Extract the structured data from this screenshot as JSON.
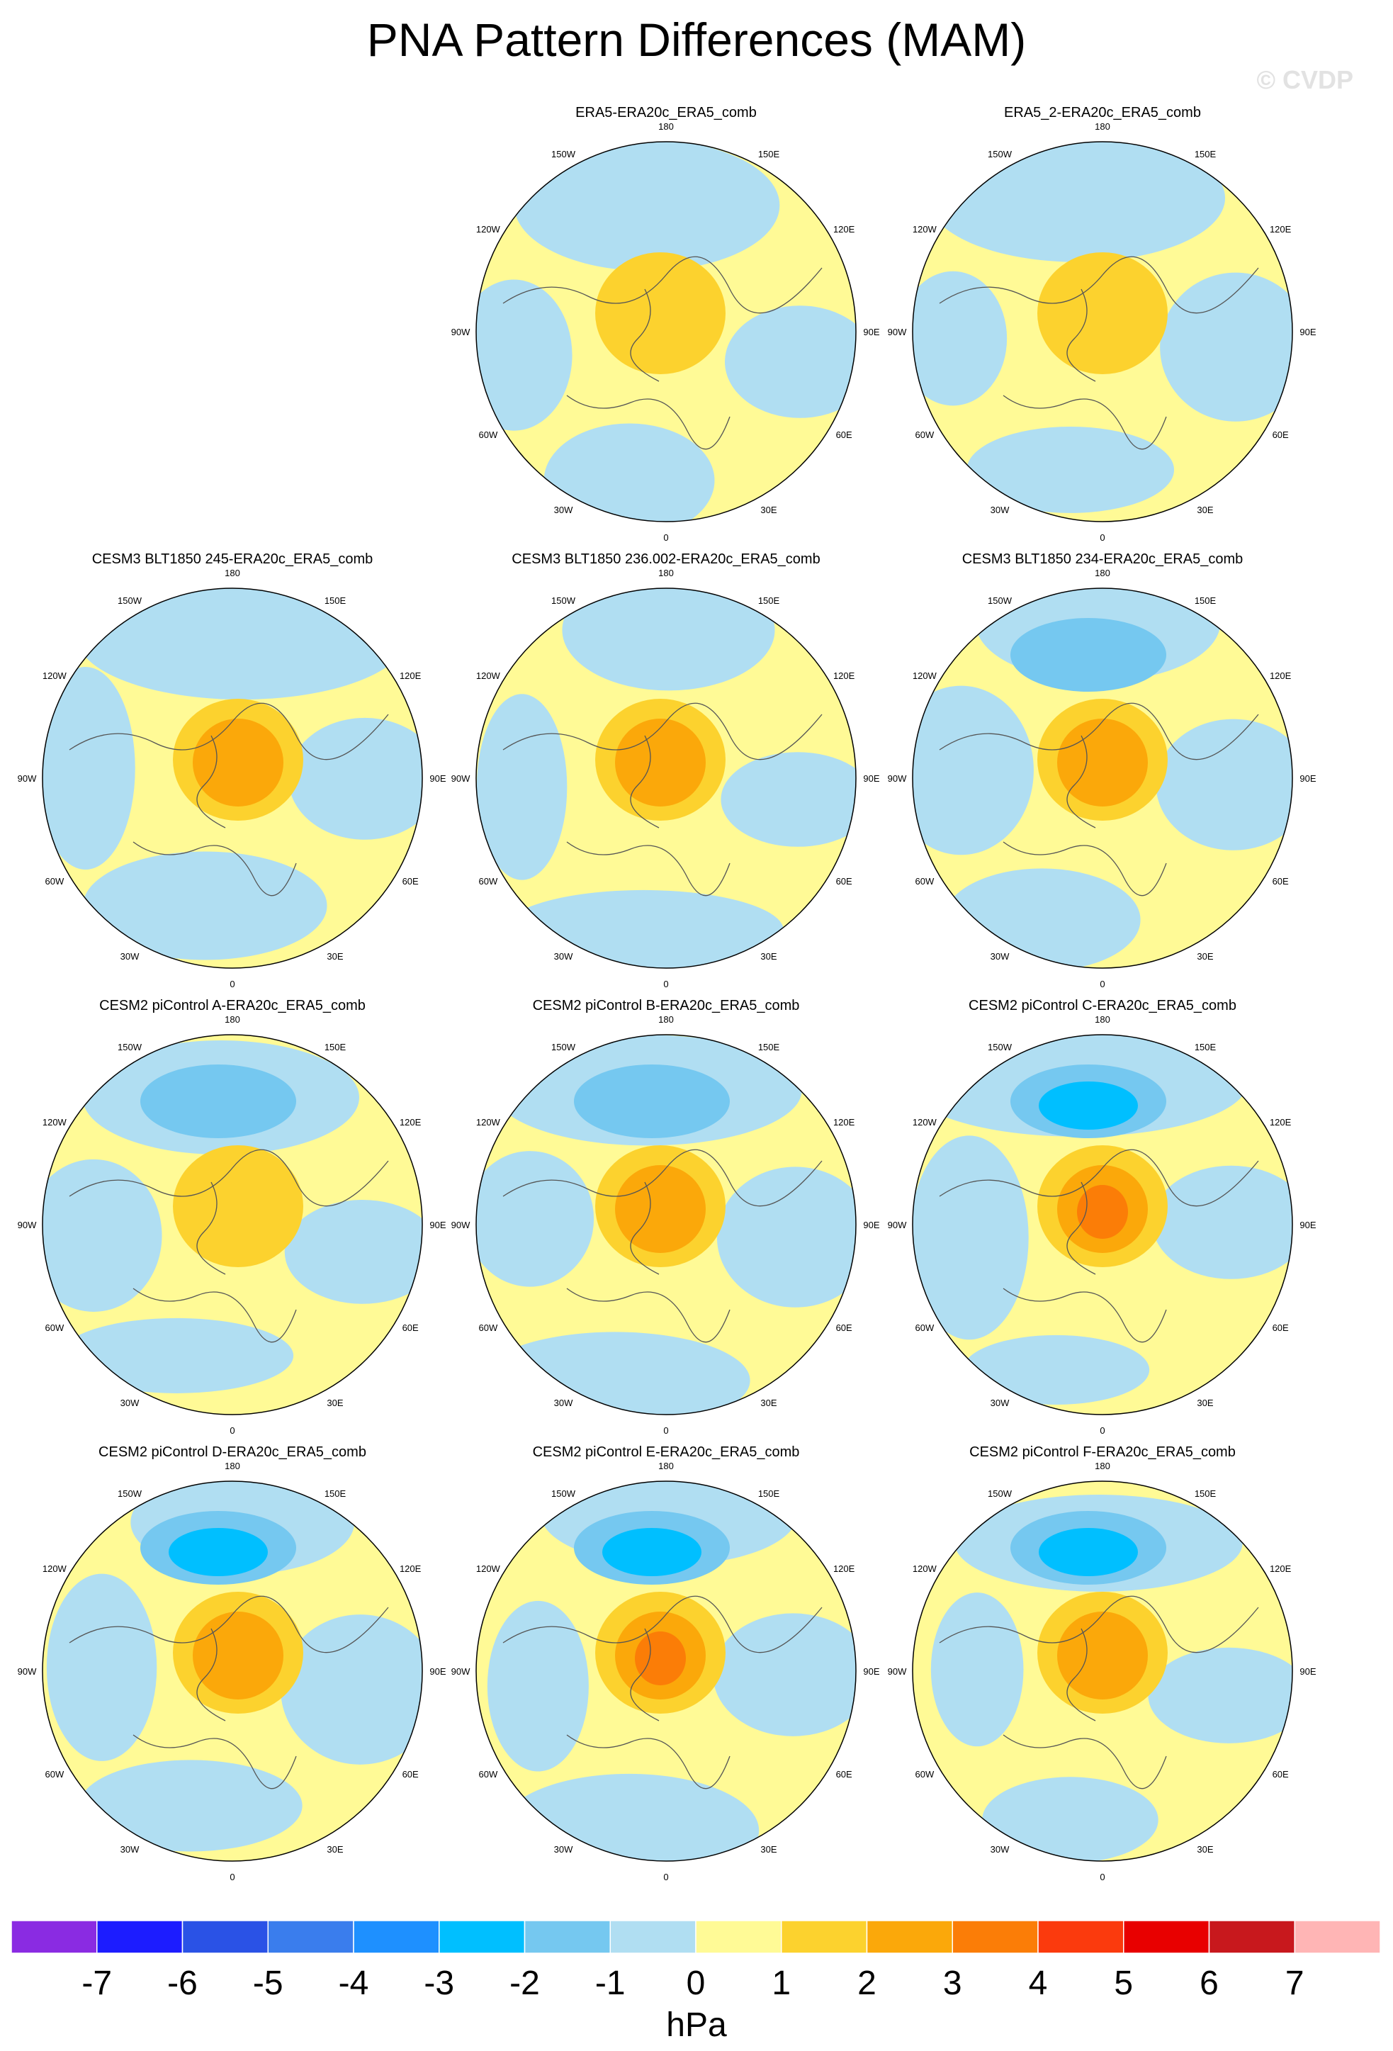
{
  "title": "PNA Pattern Differences (MAM)",
  "watermark": "© CVDP",
  "chart_data": {
    "type": "polar-contour-map",
    "projection": "north polar stereographic",
    "field": "PNA sea level pressure pattern difference",
    "units": "hPa",
    "longitude_labels": [
      "180",
      "150E",
      "120E",
      "90E",
      "60E",
      "30E",
      "0",
      "30W",
      "60W",
      "90W",
      "120W",
      "150W"
    ],
    "levels": [
      "-7",
      "-6",
      "-5",
      "-4",
      "-3",
      "-2",
      "-1",
      "0",
      "1",
      "2",
      "3",
      "4",
      "5",
      "6",
      "7"
    ],
    "level_colors": [
      "#8a2be2",
      "#1c1cff",
      "#2a52e6",
      "#3a7ded",
      "#1e90ff",
      "#00bfff",
      "#75c8f0",
      "#b0def2",
      "#fffa96",
      "#fcd22e",
      "#fba80a",
      "#fb7d07",
      "#fb3a0d",
      "#e80000",
      "#c8181d",
      "#ffb5b5"
    ],
    "panels": [
      {
        "name": "ERA5-ERA20c_ERA5_comb",
        "min_hPa": -1,
        "max_hPa": 2
      },
      {
        "name": "ERA5_2-ERA20c_ERA5_comb",
        "min_hPa": -1,
        "max_hPa": 2
      },
      {
        "name": "CESM3 BLT1850 245-ERA20c_ERA5_comb",
        "min_hPa": -1,
        "max_hPa": 3
      },
      {
        "name": "CESM3 BLT1850 236.002-ERA20c_ERA5_comb",
        "min_hPa": -1,
        "max_hPa": 3
      },
      {
        "name": "CESM3 BLT1850 234-ERA20c_ERA5_comb",
        "min_hPa": -2,
        "max_hPa": 3
      },
      {
        "name": "CESM2 piControl A-ERA20c_ERA5_comb",
        "min_hPa": -2,
        "max_hPa": 2
      },
      {
        "name": "CESM2 piControl B-ERA20c_ERA5_comb",
        "min_hPa": -2,
        "max_hPa": 3
      },
      {
        "name": "CESM2 piControl C-ERA20c_ERA5_comb",
        "min_hPa": -3,
        "max_hPa": 4
      },
      {
        "name": "CESM2 piControl D-ERA20c_ERA5_comb",
        "min_hPa": -3,
        "max_hPa": 3
      },
      {
        "name": "CESM2 piControl E-ERA20c_ERA5_comb",
        "min_hPa": -3,
        "max_hPa": 4
      },
      {
        "name": "CESM2 piControl F-ERA20c_ERA5_comb",
        "min_hPa": -3,
        "max_hPa": 3
      }
    ]
  }
}
